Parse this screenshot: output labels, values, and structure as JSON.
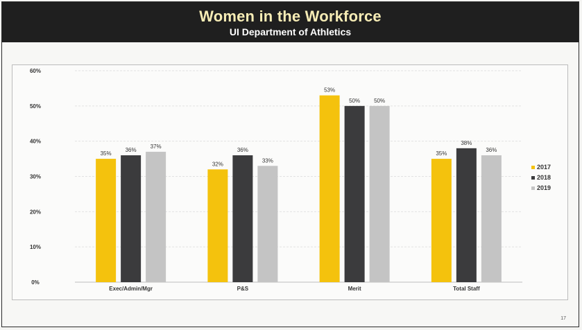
{
  "header": {
    "title": "Women in the Workforce",
    "subtitle": "UI Department of Athletics"
  },
  "page_number": "17",
  "chart_data": {
    "type": "bar",
    "categories": [
      "Exec/Admin/Mgr",
      "P&S",
      "Merit",
      "Total Staff"
    ],
    "series": [
      {
        "name": "2017",
        "values": [
          35,
          32,
          53,
          35
        ],
        "labels": [
          "35%",
          "32%",
          "53%",
          "35%"
        ],
        "color": "#f4c20d"
      },
      {
        "name": "2018",
        "values": [
          36,
          36,
          50,
          38
        ],
        "labels": [
          "36%",
          "36%",
          "50%",
          "38%"
        ],
        "color": "#3b3b3d"
      },
      {
        "name": "2019",
        "values": [
          37,
          33,
          50,
          36
        ],
        "labels": [
          "37%",
          "33%",
          "50%",
          "36%"
        ],
        "color": "#c4c4c4"
      }
    ],
    "ylim": [
      0,
      60
    ],
    "yticks": [
      0,
      10,
      20,
      30,
      40,
      50,
      60
    ],
    "ytick_labels": [
      "0%",
      "10%",
      "20%",
      "30%",
      "40%",
      "50%",
      "60%"
    ],
    "grid": true,
    "legend_position": "right",
    "xlabel": "",
    "ylabel": ""
  }
}
